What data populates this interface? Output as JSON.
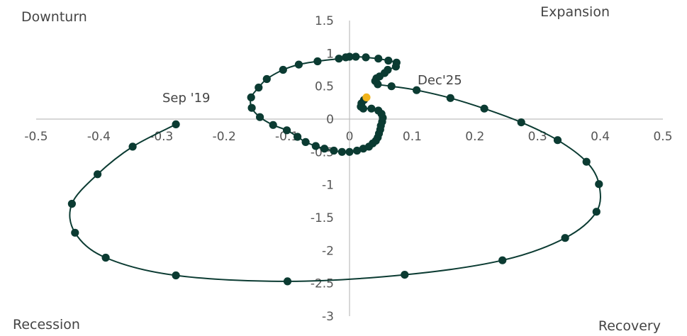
{
  "chart_data": {
    "type": "scatter",
    "xlim": [
      -0.5,
      0.5
    ],
    "ylim": [
      -3,
      1.5
    ],
    "x_ticks": [
      "-0.5",
      "-0.4",
      "-0.3",
      "-0.2",
      "-0.1",
      "0",
      "0.1",
      "0.2",
      "0.3",
      "0.4",
      "0.5"
    ],
    "y_ticks": [
      "1.5",
      "1",
      "0.5",
      "0",
      "-0.5",
      "-1",
      "-1.5",
      "-2",
      "-2.5",
      "-3"
    ],
    "quadrant_labels": {
      "top_left": "Downturn",
      "top_right": "Expansion",
      "bottom_left": "Recession",
      "bottom_right": "Recovery"
    },
    "annotations": {
      "start": "Sep '19",
      "end": "Dec'25"
    },
    "colors": {
      "series": "#0b3b32",
      "highlight": "#f0b31a",
      "axis": "#bfbfbf"
    },
    "grid": false,
    "series": [
      {
        "points": [
          [
            -0.277,
            -0.08
          ],
          [
            -0.346,
            -0.42
          ],
          [
            -0.402,
            -0.84
          ],
          [
            -0.443,
            -1.29
          ],
          [
            -0.438,
            -1.73
          ],
          [
            -0.389,
            -2.11
          ],
          [
            -0.277,
            -2.38
          ],
          [
            -0.099,
            -2.47
          ],
          [
            0.088,
            -2.37
          ],
          [
            0.244,
            -2.15
          ],
          [
            0.344,
            -1.81
          ],
          [
            0.394,
            -1.41
          ],
          [
            0.398,
            -0.99
          ],
          [
            0.378,
            -0.65
          ],
          [
            0.332,
            -0.32
          ],
          [
            0.274,
            -0.05
          ],
          [
            0.215,
            0.16
          ],
          [
            0.161,
            0.32
          ],
          [
            0.107,
            0.44
          ],
          [
            0.067,
            0.5
          ],
          [
            0.045,
            0.53
          ],
          [
            0.041,
            0.58
          ],
          [
            0.043,
            0.62
          ],
          [
            0.048,
            0.65
          ],
          [
            0.056,
            0.7
          ],
          [
            0.061,
            0.75
          ],
          [
            0.074,
            0.8
          ],
          [
            0.075,
            0.86
          ],
          [
            0.062,
            0.89
          ],
          [
            0.046,
            0.92
          ],
          [
            0.026,
            0.94
          ],
          [
            0.01,
            0.95
          ],
          [
            0.0,
            0.95
          ],
          [
            -0.006,
            0.94
          ],
          [
            -0.017,
            0.92
          ],
          [
            -0.051,
            0.88
          ],
          [
            -0.081,
            0.83
          ],
          [
            -0.106,
            0.75
          ],
          [
            -0.132,
            0.61
          ],
          [
            -0.145,
            0.48
          ],
          [
            -0.157,
            0.33
          ],
          [
            -0.156,
            0.17
          ],
          [
            -0.143,
            0.03
          ],
          [
            -0.122,
            -0.09
          ],
          [
            -0.1,
            -0.17
          ],
          [
            -0.083,
            -0.27
          ],
          [
            -0.07,
            -0.35
          ],
          [
            -0.054,
            -0.41
          ],
          [
            -0.04,
            -0.45
          ],
          [
            -0.025,
            -0.48
          ],
          [
            -0.012,
            -0.5
          ],
          [
            0.0,
            -0.5
          ],
          [
            0.012,
            -0.48
          ],
          [
            0.022,
            -0.45
          ],
          [
            0.031,
            -0.42
          ],
          [
            0.037,
            -0.37
          ],
          [
            0.042,
            -0.33
          ],
          [
            0.045,
            -0.28
          ],
          [
            0.047,
            -0.22
          ],
          [
            0.049,
            -0.16
          ],
          [
            0.05,
            -0.1
          ],
          [
            0.052,
            -0.04
          ],
          [
            0.053,
            0.02
          ],
          [
            0.051,
            0.08
          ],
          [
            0.046,
            0.13
          ],
          [
            0.035,
            0.16
          ],
          [
            0.022,
            0.16
          ],
          [
            0.018,
            0.19
          ],
          [
            0.019,
            0.24
          ],
          [
            0.023,
            0.29
          ],
          [
            0.027,
            0.33
          ]
        ]
      }
    ]
  }
}
